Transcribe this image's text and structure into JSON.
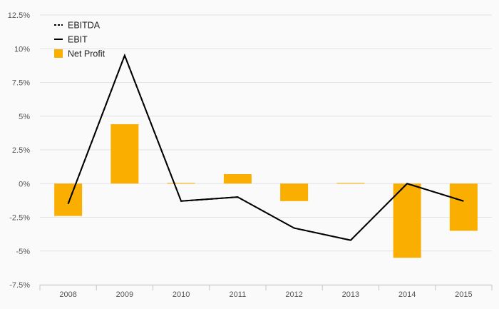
{
  "chart_data": {
    "type": "bar",
    "categories": [
      "2008",
      "2009",
      "2010",
      "2011",
      "2012",
      "2013",
      "2014",
      "2015"
    ],
    "y_ticks": [
      "12.5%",
      "10%",
      "7.5%",
      "5%",
      "2.5%",
      "0%",
      "-2.5%",
      "-5%",
      "-7.5%"
    ],
    "y_tick_values": [
      12.5,
      10,
      7.5,
      5,
      2.5,
      0,
      -2.5,
      -5,
      -7.5
    ],
    "ylim": [
      -7.5,
      12.5
    ],
    "grid": true,
    "legend_position": "top-left",
    "series": [
      {
        "name": "EBITDA",
        "kind": "line",
        "style": "dashed",
        "color": "#000000",
        "values": [
          -1.5,
          9.5,
          -1.3,
          -1.0,
          -3.3,
          -4.2,
          0.0,
          -1.3
        ]
      },
      {
        "name": "EBIT",
        "kind": "line",
        "style": "solid",
        "color": "#000000",
        "values": [
          -1.5,
          9.5,
          -1.3,
          -1.0,
          -3.3,
          -4.2,
          0.0,
          -1.3
        ]
      },
      {
        "name": "Net Profit",
        "kind": "bar",
        "color": "#f9ae00",
        "values": [
          -2.4,
          4.4,
          0.05,
          0.7,
          -1.3,
          0.05,
          -5.5,
          -3.5
        ]
      }
    ]
  }
}
